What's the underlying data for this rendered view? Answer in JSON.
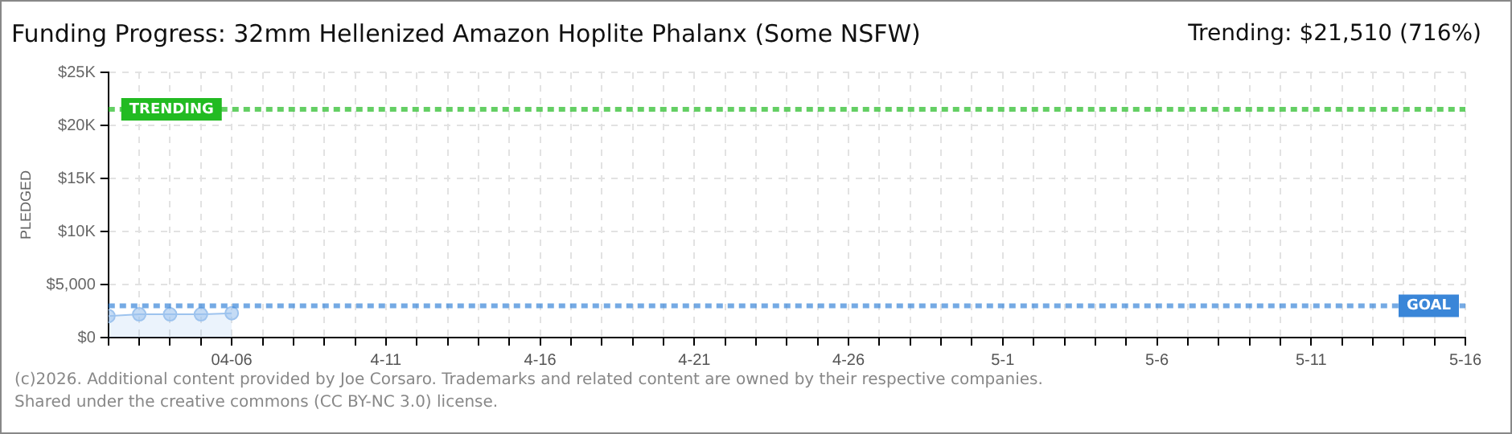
{
  "chart_data": {
    "type": "area",
    "title": "Funding Progress: 32mm Hellenized Amazon Hoplite Phalanx (Some NSFW)",
    "ylabel": "PLEDGED",
    "annotations": [
      "Trending:  $21,510 (716%)",
      "(c)2026. Additional content provided by Joe Corsaro. Trademarks and related content are owned by their respective companies.",
      "Shared under the creative commons (CC BY-NC 3.0) license."
    ],
    "x": [
      "--04-02",
      "--04-03",
      "--04-04",
      "--04-05",
      "--04-06"
    ],
    "series": [
      {
        "color": "#9dc3ee",
        "values": [
          2030,
          2190,
          2190,
          2190,
          2300
        ]
      }
    ],
    "xlim": [
      "--04-02",
      "--05-16"
    ],
    "xticks": [
      {
        "value": "--04-02",
        "label": null
      },
      {
        "value": "--04-03",
        "label": null
      },
      {
        "value": "--04-04",
        "label": null
      },
      {
        "value": "--04-05",
        "label": null
      },
      {
        "value": "--04-06",
        "label": "04-06"
      },
      {
        "value": "--04-07",
        "label": null
      },
      {
        "value": "--04-08",
        "label": null
      },
      {
        "value": "--04-09",
        "label": null
      },
      {
        "value": "--04-10",
        "label": null
      },
      {
        "value": "--04-11",
        "label": "4-11"
      },
      {
        "value": "--04-12",
        "label": null
      },
      {
        "value": "--04-13",
        "label": null
      },
      {
        "value": "--04-14",
        "label": null
      },
      {
        "value": "--04-15",
        "label": null
      },
      {
        "value": "--04-16",
        "label": "4-16"
      },
      {
        "value": "--04-17",
        "label": null
      },
      {
        "value": "--04-18",
        "label": null
      },
      {
        "value": "--04-19",
        "label": null
      },
      {
        "value": "--04-20",
        "label": null
      },
      {
        "value": "--04-21",
        "label": "4-21"
      },
      {
        "value": "--04-22",
        "label": null
      },
      {
        "value": "--04-23",
        "label": null
      },
      {
        "value": "--04-24",
        "label": null
      },
      {
        "value": "--04-25",
        "label": null
      },
      {
        "value": "--04-26",
        "label": "4-26"
      },
      {
        "value": "--04-27",
        "label": null
      },
      {
        "value": "--04-28",
        "label": null
      },
      {
        "value": "--04-29",
        "label": null
      },
      {
        "value": "--04-30",
        "label": null
      },
      {
        "value": "--05-01",
        "label": "5-1"
      },
      {
        "value": "--05-02",
        "label": null
      },
      {
        "value": "--05-03",
        "label": null
      },
      {
        "value": "--05-04",
        "label": null
      },
      {
        "value": "--05-05",
        "label": null
      },
      {
        "value": "--05-06",
        "label": "5-6"
      },
      {
        "value": "--05-07",
        "label": null
      },
      {
        "value": "--05-08",
        "label": null
      },
      {
        "value": "--05-09",
        "label": null
      },
      {
        "value": "--05-10",
        "label": null
      },
      {
        "value": "--05-11",
        "label": "5-11"
      },
      {
        "value": "--05-12",
        "label": null
      },
      {
        "value": "--05-13",
        "label": null
      },
      {
        "value": "--05-14",
        "label": null
      },
      {
        "value": "--05-15",
        "label": null
      },
      {
        "value": "--05-16",
        "label": "5-16"
      }
    ],
    "ylim": [
      0,
      25000
    ],
    "yticks": [
      {
        "value": 0,
        "label": "$0"
      },
      {
        "value": 5000,
        "label": "$5,000"
      },
      {
        "value": 10000,
        "label": "$10K"
      },
      {
        "value": 15000,
        "label": "$15K"
      },
      {
        "value": 20000,
        "label": "$20K"
      },
      {
        "value": 25000,
        "label": "$25K"
      }
    ],
    "ref_lines": [
      {
        "axis": "y",
        "value": 21510,
        "label": "TRENDING",
        "color": "#22bb22",
        "line_style": "dashed"
      },
      {
        "axis": "y",
        "value": 3000,
        "label": "GOAL",
        "color": "#3a86d8",
        "line_style": "dashed"
      }
    ],
    "grid": true,
    "marker": "circle",
    "legend": false
  }
}
